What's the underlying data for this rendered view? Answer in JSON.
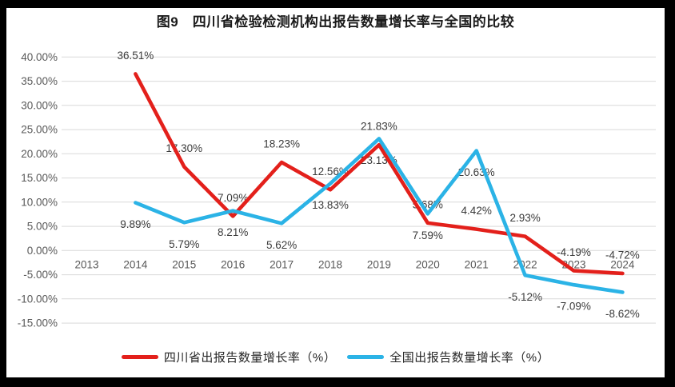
{
  "frame": {
    "title": "图9　四川省检验检测机构出报告数量增长率与全国的比较"
  },
  "chart_data": {
    "type": "line",
    "title": "图9　四川省检验检测机构出报告数量增长率与全国的比较",
    "categories": [
      "2013",
      "2014",
      "2015",
      "2016",
      "2017",
      "2018",
      "2019",
      "2020",
      "2021",
      "2022",
      "2023",
      "2024"
    ],
    "series": [
      {
        "name": "四川省出报告数量增长率（%）",
        "color": "#e3201b",
        "values": [
          null,
          36.51,
          17.3,
          7.09,
          18.23,
          12.56,
          21.83,
          5.68,
          4.42,
          2.93,
          -4.19,
          -4.72
        ],
        "label_position": "above"
      },
      {
        "name": "全国出报告数量增长率（%）",
        "color": "#2bb3e6",
        "values": [
          null,
          9.89,
          5.79,
          8.21,
          5.62,
          13.83,
          23.13,
          7.59,
          20.63,
          -5.12,
          -7.09,
          -8.62
        ],
        "label_position": "below"
      }
    ],
    "xlabel": "",
    "ylabel": "",
    "ylim": [
      -15,
      40
    ],
    "ytick_step": 5,
    "ytick_labels": [
      "40.00%",
      "35.00%",
      "30.00%",
      "25.00%",
      "20.00%",
      "15.00%",
      "10.00%",
      "5.00%",
      "0.00%",
      "-5.00%",
      "-10.00%",
      "-15.00%"
    ],
    "label_format": "0.00%",
    "grid": true,
    "legend_position": "bottom",
    "colors": {
      "gridline": "#d9d9d9",
      "axis_text": "#595959",
      "data_label_text": "#3b3b3b",
      "background": "#ffffff",
      "frame_border": "#000000"
    }
  }
}
